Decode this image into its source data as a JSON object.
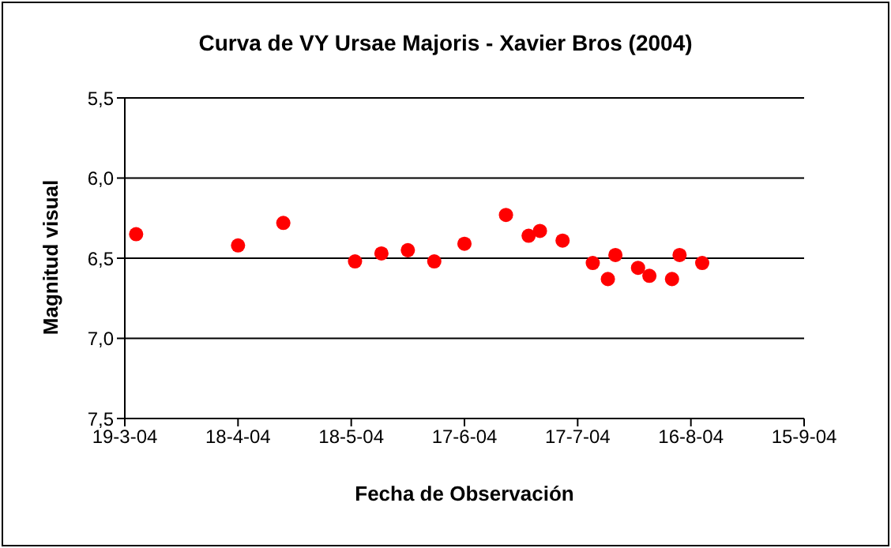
{
  "chart_data": {
    "type": "scatter",
    "title": "Curva de VY Ursae Majoris - Xavier Bros (2004)",
    "xlabel": "Fecha de Observación",
    "ylabel": "Magnitud visual",
    "x": [
      "2004-03-22",
      "2004-04-18",
      "2004-04-30",
      "2004-05-19",
      "2004-05-26",
      "2004-06-02",
      "2004-06-09",
      "2004-06-17",
      "2004-06-28",
      "2004-07-04",
      "2004-07-07",
      "2004-07-13",
      "2004-07-21",
      "2004-07-25",
      "2004-07-27",
      "2004-08-02",
      "2004-08-05",
      "2004-08-11",
      "2004-08-13",
      "2004-08-19"
    ],
    "series": [
      {
        "color": "#ff0000",
        "values": [
          6.35,
          6.42,
          6.28,
          6.52,
          6.47,
          6.45,
          6.52,
          6.41,
          6.23,
          6.36,
          6.33,
          6.39,
          6.53,
          6.63,
          6.48,
          6.56,
          6.61,
          6.63,
          6.48,
          6.53
        ]
      }
    ],
    "xlim": [
      "2004-03-19",
      "2004-09-15"
    ],
    "xticks": [
      {
        "value": "2004-03-19",
        "label": "19-3-04"
      },
      {
        "value": "2004-04-18",
        "label": "18-4-04"
      },
      {
        "value": "2004-05-18",
        "label": "18-5-04"
      },
      {
        "value": "2004-06-17",
        "label": "17-6-04"
      },
      {
        "value": "2004-07-17",
        "label": "17-7-04"
      },
      {
        "value": "2004-08-16",
        "label": "16-8-04"
      },
      {
        "value": "2004-09-15",
        "label": "15-9-04"
      }
    ],
    "ylim": [
      7.5,
      5.5
    ],
    "yticks": [
      {
        "value": 5.5,
        "label": "5,5"
      },
      {
        "value": 6.0,
        "label": "6,0"
      },
      {
        "value": 6.5,
        "label": "6,5"
      },
      {
        "value": 7.0,
        "label": "7,0"
      },
      {
        "value": 7.5,
        "label": "7,5"
      }
    ],
    "grid": "y",
    "marker": "circle"
  }
}
